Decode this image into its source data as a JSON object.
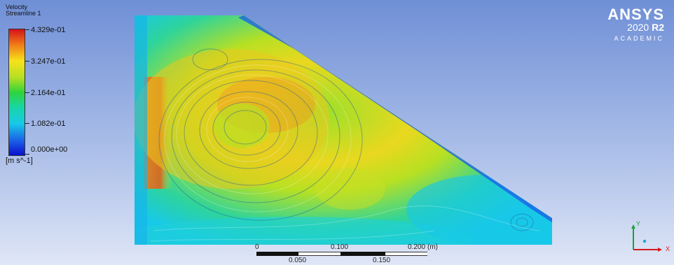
{
  "legend": {
    "title_line1": "Velocity",
    "title_line2": "Streamline 1",
    "labels": [
      "4.329e-01",
      "3.247e-01",
      "2.164e-01",
      "1.082e-01",
      "0.000e+00"
    ],
    "unit": "[m s^-1]"
  },
  "logo": {
    "brand": "ANSYS",
    "version_year": "2020",
    "version_release": "R2",
    "edition": "ACADEMIC"
  },
  "scale": {
    "top_labels": [
      "0",
      "0.100",
      "0.200",
      "(m)"
    ],
    "bottom_labels": [
      "0.050",
      "0.150"
    ]
  },
  "triad": {
    "y_label": "Y",
    "x_label": "X"
  },
  "colors": {
    "background_top": "#6f8fd6",
    "background_bottom": "#dfe6f6",
    "max_velocity": "#d4121a",
    "mid_velocity": "#2fd43a",
    "min_velocity": "#0a10d0"
  }
}
